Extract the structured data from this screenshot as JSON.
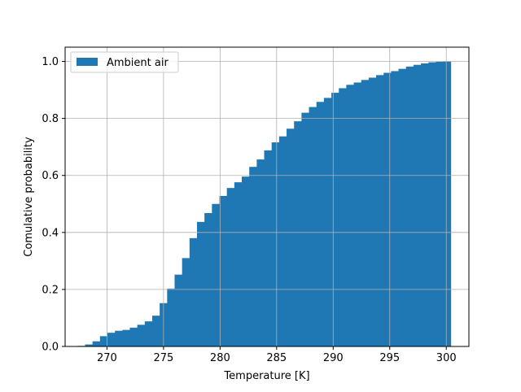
{
  "chart_data": {
    "type": "bar",
    "title": "",
    "xlabel": "Temperature [K]",
    "ylabel": "Comulative probability",
    "xlim": [
      266.3,
      302.0
    ],
    "ylim": [
      0,
      1.05
    ],
    "xticks": [
      270,
      275,
      280,
      285,
      290,
      295,
      300
    ],
    "xtick_labels": [
      "270",
      "275",
      "280",
      "285",
      "290",
      "295",
      "300"
    ],
    "yticks": [
      0.0,
      0.2,
      0.4,
      0.6,
      0.8,
      1.0
    ],
    "ytick_labels": [
      "0.0",
      "0.2",
      "0.4",
      "0.6",
      "0.8",
      "1.0"
    ],
    "grid": true,
    "legend": {
      "placement": "top-left",
      "entries": [
        "Ambient air"
      ]
    },
    "series": [
      {
        "name": "Ambient air",
        "color": "#1f77b4",
        "bin_edges": [
          267.4,
          268.06,
          268.72,
          269.38,
          270.04,
          270.7,
          271.36,
          272.02,
          272.68,
          273.34,
          274.0,
          274.66,
          275.32,
          275.98,
          276.64,
          277.3,
          277.96,
          278.62,
          279.28,
          279.94,
          280.6,
          281.26,
          281.92,
          282.58,
          283.24,
          283.9,
          284.56,
          285.22,
          285.88,
          286.54,
          287.2,
          287.86,
          288.52,
          289.18,
          289.84,
          290.5,
          291.16,
          291.82,
          292.48,
          293.14,
          293.8,
          294.46,
          295.12,
          295.78,
          296.44,
          297.1,
          297.76,
          298.42,
          299.08,
          299.74,
          300.4
        ],
        "values": [
          0.002,
          0.007,
          0.018,
          0.036,
          0.048,
          0.055,
          0.058,
          0.066,
          0.076,
          0.088,
          0.108,
          0.152,
          0.203,
          0.252,
          0.31,
          0.38,
          0.437,
          0.468,
          0.5,
          0.528,
          0.556,
          0.576,
          0.596,
          0.63,
          0.656,
          0.688,
          0.716,
          0.737,
          0.764,
          0.79,
          0.82,
          0.84,
          0.858,
          0.872,
          0.89,
          0.906,
          0.918,
          0.926,
          0.935,
          0.943,
          0.952,
          0.96,
          0.966,
          0.974,
          0.982,
          0.988,
          0.993,
          0.997,
          0.999,
          1.0
        ]
      }
    ]
  }
}
